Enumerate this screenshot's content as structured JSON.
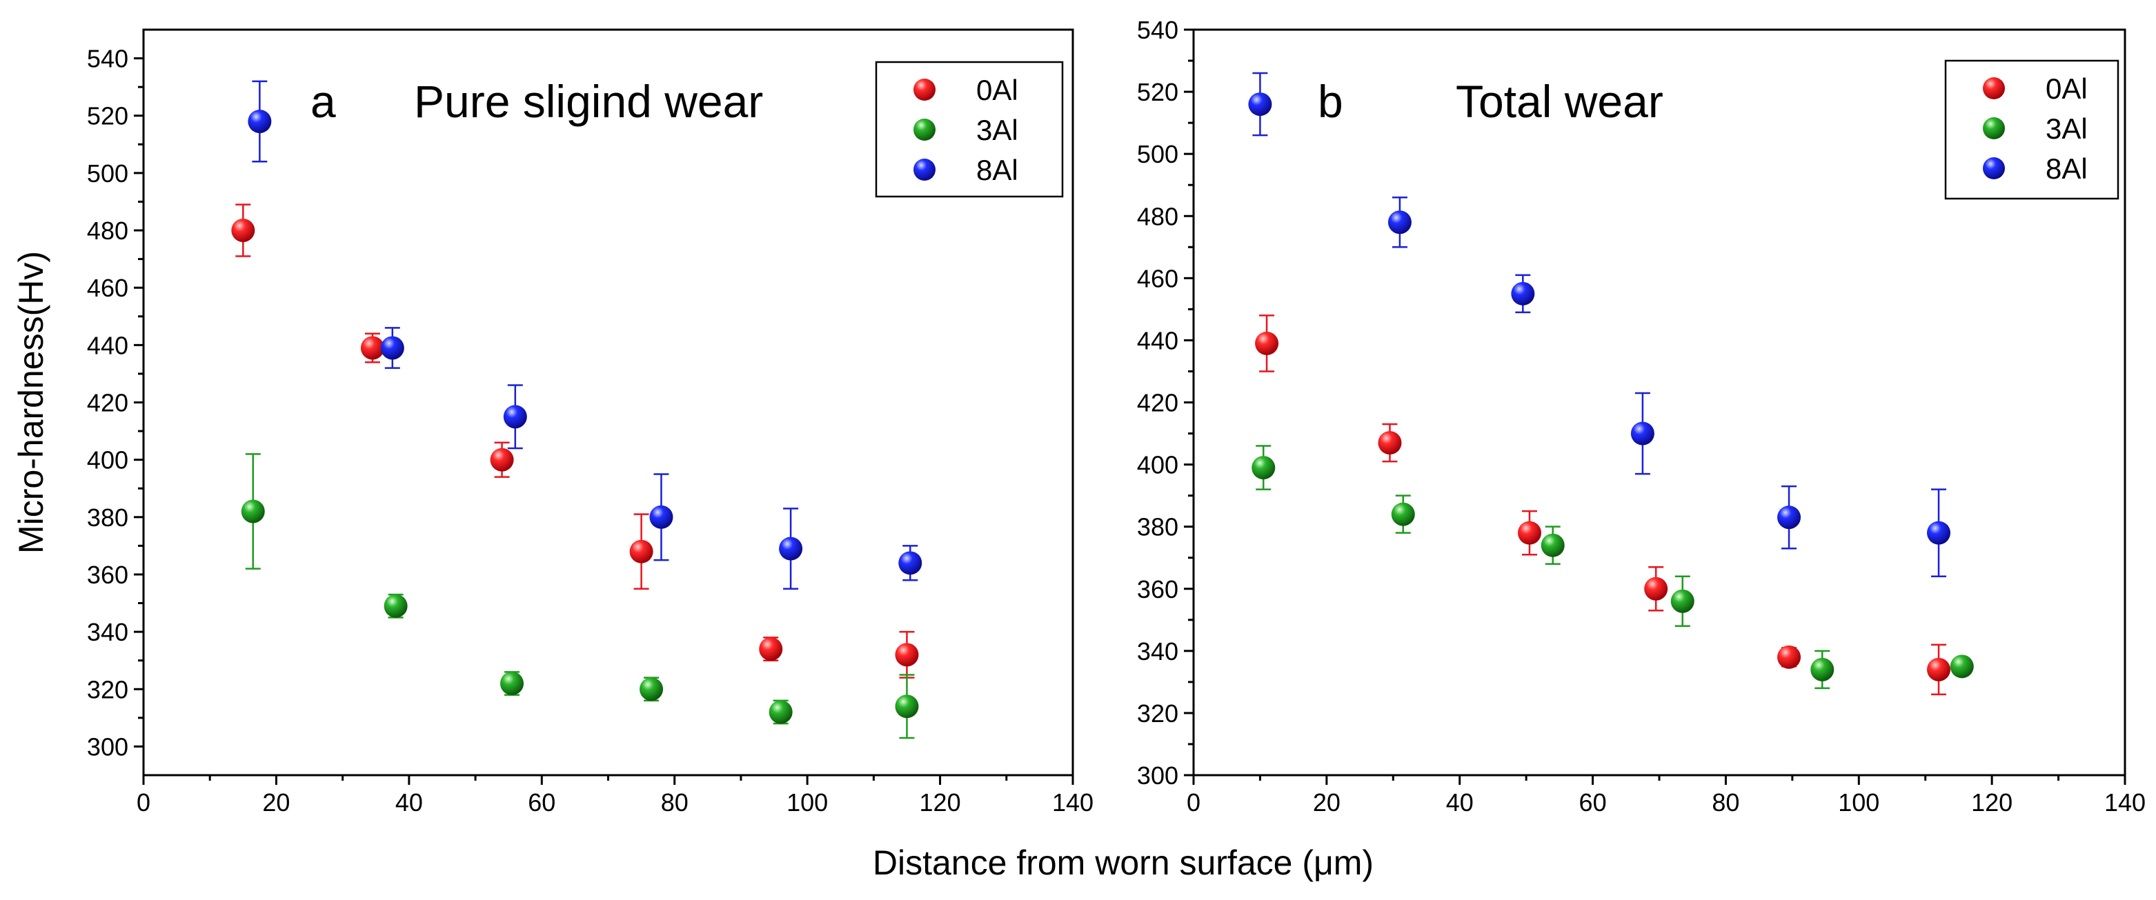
{
  "colors": {
    "0Al": "#e8141c",
    "3Al": "#1e9a1e",
    "8Al": "#1820d8"
  },
  "shared_xlabel": "Distance from worn surface (μm)",
  "chart_data": [
    {
      "type": "scatter",
      "panel": "a",
      "title": "Pure sligind wear",
      "xlabel": "Distance from worn surface (μm)",
      "ylabel": "Micro-hardness(Hv)",
      "xlim": [
        0,
        140
      ],
      "ylim": [
        290,
        550
      ],
      "xticks": [
        0,
        20,
        40,
        60,
        80,
        100,
        120,
        140
      ],
      "yticks": [
        300,
        320,
        340,
        360,
        380,
        400,
        420,
        440,
        460,
        480,
        500,
        520,
        540
      ],
      "legend_position": "top-right",
      "series": [
        {
          "name": "0Al",
          "x": [
            15,
            34.5,
            54,
            75,
            94.5,
            115
          ],
          "y": [
            480,
            439,
            400,
            368,
            334,
            332
          ],
          "err": [
            9,
            5,
            6,
            13,
            4,
            8
          ]
        },
        {
          "name": "3Al",
          "x": [
            16.5,
            38,
            55.5,
            76.5,
            96,
            115
          ],
          "y": [
            382,
            349,
            322,
            320,
            312,
            314
          ],
          "err": [
            20,
            4,
            4,
            4,
            4,
            11
          ]
        },
        {
          "name": "8Al",
          "x": [
            17.5,
            37.5,
            56,
            78,
            97.5,
            115.5
          ],
          "y": [
            518,
            439,
            415,
            380,
            369,
            364
          ],
          "err": [
            14,
            7,
            11,
            15,
            14,
            6
          ]
        }
      ]
    },
    {
      "type": "scatter",
      "panel": "b",
      "title": "Total wear",
      "xlabel": "Distance from worn surface (μm)",
      "ylabel": "",
      "xlim": [
        0,
        140
      ],
      "ylim": [
        300,
        540
      ],
      "xticks": [
        0,
        20,
        40,
        60,
        80,
        100,
        120,
        140
      ],
      "yticks": [
        300,
        320,
        340,
        360,
        380,
        400,
        420,
        440,
        460,
        480,
        500,
        520,
        540
      ],
      "legend_position": "top-right",
      "series": [
        {
          "name": "0Al",
          "x": [
            11,
            29.5,
            50.5,
            69.5,
            89.5,
            112
          ],
          "y": [
            439,
            407,
            378,
            360,
            338,
            334
          ],
          "err": [
            9,
            6,
            7,
            7,
            3,
            8
          ]
        },
        {
          "name": "3Al",
          "x": [
            10.5,
            31.5,
            54,
            73.5,
            94.5,
            115.5
          ],
          "y": [
            399,
            384,
            374,
            356,
            334,
            335
          ],
          "err": [
            7,
            6,
            6,
            8,
            6,
            2
          ]
        },
        {
          "name": "8Al",
          "x": [
            10,
            31,
            49.5,
            67.5,
            89.5,
            112
          ],
          "y": [
            516,
            478,
            455,
            410,
            383,
            378
          ],
          "err": [
            10,
            8,
            6,
            13,
            10,
            14
          ]
        }
      ]
    }
  ]
}
